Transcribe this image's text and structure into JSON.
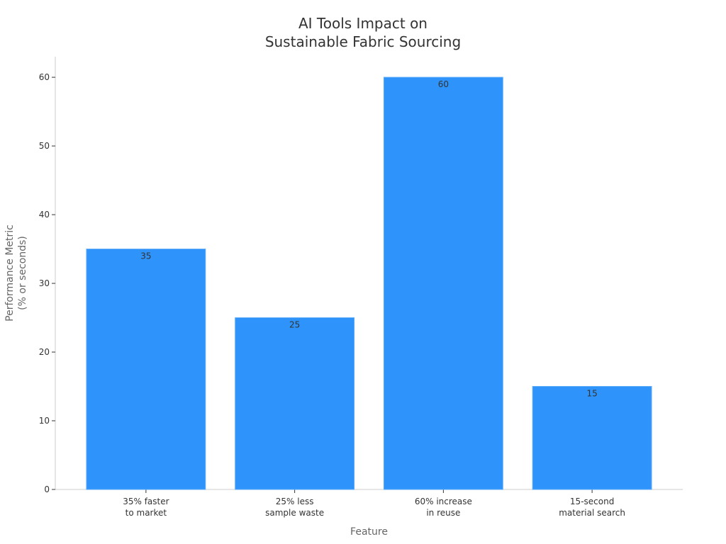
{
  "chart_data": {
    "type": "bar",
    "title_lines": [
      "AI Tools Impact on",
      "Sustainable Fabric Sourcing"
    ],
    "xlabel": "Feature",
    "ylabel_lines": [
      "Performance Metric",
      "(% or seconds)"
    ],
    "categories": [
      [
        "35% faster",
        "to market"
      ],
      [
        "25% less",
        "sample waste"
      ],
      [
        "60% increase",
        "in reuse"
      ],
      [
        "15-second",
        "material search"
      ]
    ],
    "values": [
      35,
      25,
      60,
      15
    ],
    "data_labels": [
      "35",
      "25",
      "60",
      "15"
    ],
    "ylim": [
      0,
      63
    ],
    "yticks": [
      0,
      10,
      20,
      30,
      40,
      50,
      60
    ],
    "grid": false,
    "bar_color": "#2e93fa"
  }
}
